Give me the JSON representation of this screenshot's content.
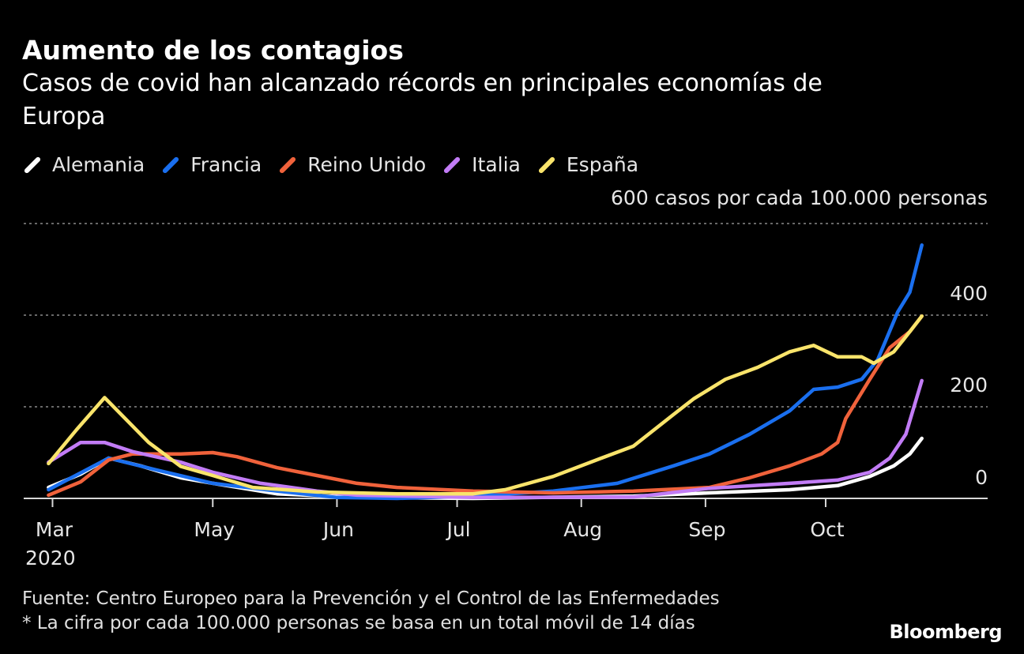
{
  "chart_data": {
    "type": "line",
    "title": "Aumento de los contagios",
    "subtitle_lines": [
      "Casos de covid han alcanzado récords en principales economías de",
      "Europa"
    ],
    "ylabel": "600 casos por cada 100.000 personas",
    "y_ticks": [
      {
        "value": 0,
        "label": "0"
      },
      {
        "value": 200,
        "label": "200"
      },
      {
        "value": 400,
        "label": "400"
      },
      {
        "value": 600,
        "label": "600"
      }
    ],
    "ylim": [
      0,
      600
    ],
    "x_unit": "days since 2020-03-01",
    "x_ticks": [
      {
        "value": 21,
        "label": "Mar"
      },
      {
        "value": 61,
        "label": "May"
      },
      {
        "value": 92,
        "label": "Jun"
      },
      {
        "value": 122,
        "label": "Jul"
      },
      {
        "value": 153,
        "label": "Aug"
      },
      {
        "value": 184,
        "label": "Sep"
      },
      {
        "value": 214,
        "label": "Oct"
      }
    ],
    "x_year": "2020",
    "grid": true,
    "legend_placement": "top-left",
    "series": [
      {
        "name": "Alemania",
        "color": "#ffffff",
        "points": [
          [
            20,
            24
          ],
          [
            28,
            53
          ],
          [
            35,
            88
          ],
          [
            43,
            71
          ],
          [
            53,
            45
          ],
          [
            61,
            33
          ],
          [
            77,
            10
          ],
          [
            97,
            2
          ],
          [
            126,
            0
          ],
          [
            166,
            5
          ],
          [
            185,
            12
          ],
          [
            205,
            19
          ],
          [
            217,
            28
          ],
          [
            225,
            48
          ],
          [
            231,
            71
          ],
          [
            235,
            97
          ],
          [
            238,
            131
          ]
        ]
      },
      {
        "name": "Francia",
        "color": "#1a6fef",
        "points": [
          [
            20,
            19
          ],
          [
            35,
            88
          ],
          [
            47,
            62
          ],
          [
            61,
            33
          ],
          [
            77,
            16
          ],
          [
            92,
            2
          ],
          [
            107,
            0
          ],
          [
            126,
            5
          ],
          [
            146,
            16
          ],
          [
            162,
            33
          ],
          [
            176,
            71
          ],
          [
            185,
            97
          ],
          [
            195,
            140
          ],
          [
            205,
            191
          ],
          [
            211,
            238
          ],
          [
            217,
            243
          ],
          [
            223,
            260
          ],
          [
            227,
            303
          ],
          [
            232,
            407
          ],
          [
            235,
            450
          ],
          [
            238,
            553
          ]
        ]
      },
      {
        "name": "Reino Unido",
        "color": "#f0623b",
        "points": [
          [
            20,
            7
          ],
          [
            28,
            36
          ],
          [
            35,
            84
          ],
          [
            41,
            97
          ],
          [
            53,
            97
          ],
          [
            61,
            100
          ],
          [
            67,
            91
          ],
          [
            77,
            67
          ],
          [
            87,
            50
          ],
          [
            97,
            33
          ],
          [
            107,
            24
          ],
          [
            126,
            16
          ],
          [
            146,
            12
          ],
          [
            166,
            16
          ],
          [
            185,
            24
          ],
          [
            195,
            45
          ],
          [
            205,
            71
          ],
          [
            213,
            97
          ],
          [
            217,
            122
          ],
          [
            219,
            174
          ],
          [
            225,
            260
          ],
          [
            230,
            329
          ],
          [
            235,
            364
          ],
          [
            238,
            398
          ]
        ]
      },
      {
        "name": "Italia",
        "color": "#c27cf6",
        "points": [
          [
            20,
            79
          ],
          [
            28,
            122
          ],
          [
            34,
            122
          ],
          [
            41,
            102
          ],
          [
            53,
            79
          ],
          [
            61,
            57
          ],
          [
            73,
            33
          ],
          [
            87,
            16
          ],
          [
            97,
            7
          ],
          [
            126,
            2
          ],
          [
            166,
            3
          ],
          [
            185,
            22
          ],
          [
            205,
            33
          ],
          [
            217,
            40
          ],
          [
            225,
            57
          ],
          [
            230,
            88
          ],
          [
            234,
            140
          ],
          [
            238,
            257
          ]
        ]
      },
      {
        "name": "España",
        "color": "#f9e46b",
        "points": [
          [
            20,
            76
          ],
          [
            27,
            150
          ],
          [
            34,
            220
          ],
          [
            45,
            122
          ],
          [
            53,
            70
          ],
          [
            61,
            50
          ],
          [
            71,
            24
          ],
          [
            87,
            14
          ],
          [
            107,
            10
          ],
          [
            126,
            10
          ],
          [
            134,
            19
          ],
          [
            146,
            48
          ],
          [
            158,
            88
          ],
          [
            166,
            114
          ],
          [
            176,
            183
          ],
          [
            181,
            217
          ],
          [
            189,
            260
          ],
          [
            197,
            286
          ],
          [
            205,
            320
          ],
          [
            211,
            334
          ],
          [
            217,
            309
          ],
          [
            223,
            309
          ],
          [
            226,
            295
          ],
          [
            231,
            320
          ],
          [
            235,
            364
          ],
          [
            238,
            398
          ]
        ]
      }
    ]
  },
  "footer": {
    "source": "Fuente: Centro Europeo para la Prevención y el Control de las Enfermedades",
    "note": "* La cifra por cada 100.000 personas se basa en un total móvil de 14 días",
    "logo": "Bloomberg"
  }
}
